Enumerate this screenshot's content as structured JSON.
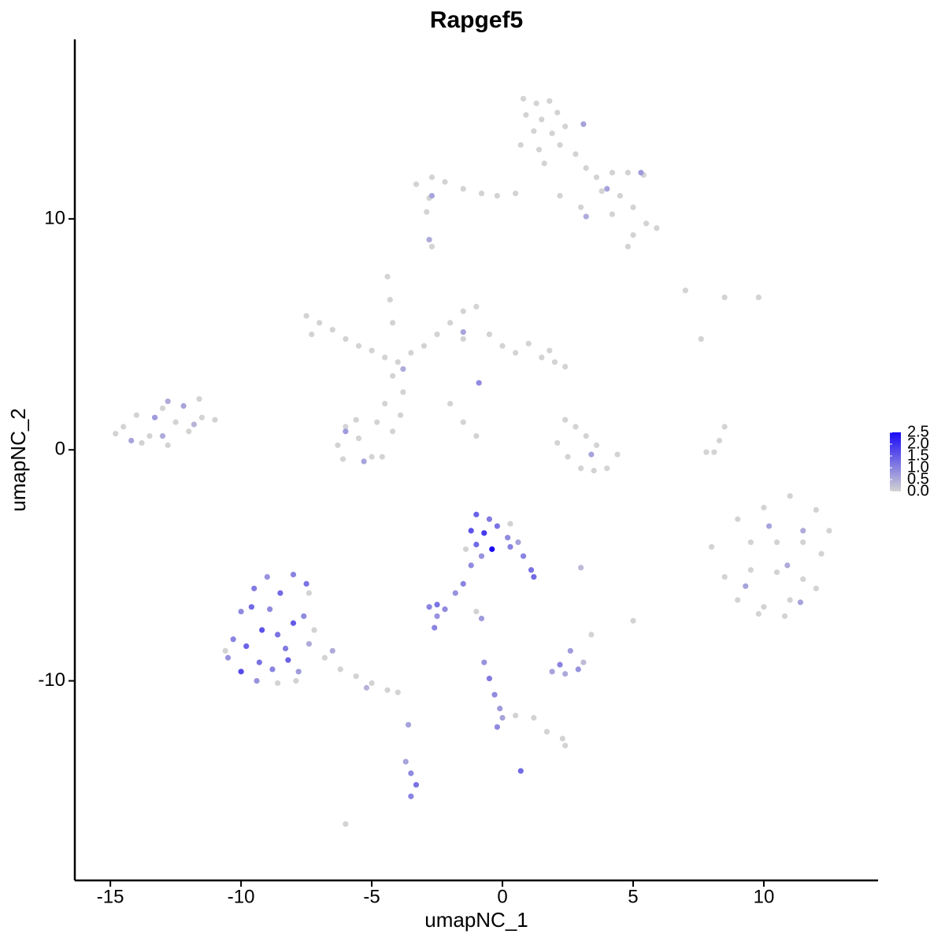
{
  "chart_data": {
    "type": "scatter",
    "title": "Rapgef5",
    "x_label": "umapNC_1",
    "y_label": "umapNC_2",
    "xlim": [
      -16.36,
      14.37
    ],
    "ylim": [
      -18.64,
      17.77
    ],
    "xticks": [
      -15,
      -10,
      -5,
      0,
      5,
      10
    ],
    "yticks": [
      -10,
      0,
      10
    ],
    "low_color": "#d3d3d3",
    "high_color": "#1a0af5",
    "clim": [
      0,
      2.5
    ],
    "cticks": [
      {
        "value": 0,
        "label": "0.0"
      },
      {
        "value": 0.5,
        "label": "0.5"
      },
      {
        "value": 1,
        "label": "1.0"
      },
      {
        "value": 1.5,
        "label": "1.5"
      },
      {
        "value": 2,
        "label": "2.0"
      },
      {
        "value": 2.5,
        "label": "2.5"
      }
    ],
    "x": [
      0.8,
      1.3,
      1.8,
      0.9,
      1.5,
      2.1,
      1.2,
      1.9,
      2.4,
      0.7,
      1.4,
      2.2,
      2.8,
      1.6,
      3.2,
      3.6,
      4.2,
      4.8,
      5.4,
      3.8,
      4.5,
      5.0,
      4.2,
      5.5,
      5.9,
      5.0,
      4.8,
      3.0,
      2.2,
      3.1,
      5.3,
      4.0,
      3.2,
      -3.3,
      -2.7,
      -2.2,
      -1.5,
      -0.8,
      -0.2,
      0.5,
      -2.8,
      -2.9,
      -2.7,
      -2.7,
      -2.8,
      -4.5,
      -4.0,
      -3.5,
      -5.0,
      -4.2,
      -3.8,
      -4.5,
      -4.8,
      -4.2,
      -3.9,
      -7.5,
      -7.0,
      -6.5,
      -6.0,
      -5.5,
      -7.3,
      -4.4,
      -4.3,
      -4.2,
      -3.0,
      -2.5,
      -2.0,
      -1.5,
      -1.0,
      -1.5,
      -0.5,
      0.0,
      0.5,
      1.0,
      1.5,
      2.0,
      2.4,
      1.8,
      -2.0,
      -1.5,
      -1.0,
      -6.0,
      -6.3,
      -5.5,
      -5.0,
      -6.1,
      -5.6,
      -4.6,
      -6.0,
      -5.3,
      -3.8,
      -1.5,
      -0.9,
      -14.5,
      -14.0,
      -13.5,
      -13.0,
      -12.5,
      -12.0,
      -11.5,
      -11.0,
      -11.6,
      -12.8,
      -13.8,
      -14.8,
      -12.2,
      -13.3,
      -12.8,
      -14.2,
      -11.8,
      -13.0,
      2.1,
      2.5,
      3.0,
      3.5,
      4.0,
      4.4,
      3.2,
      2.8,
      3.6,
      3.4,
      2.4,
      8.1,
      8.3,
      8.5,
      7.8,
      7.0,
      8.5,
      9.8,
      7.6,
      9.0,
      10.0,
      11.0,
      12.0,
      12.5,
      9.5,
      10.5,
      11.5,
      12.2,
      8.5,
      9.5,
      10.5,
      11.5,
      9.0,
      10.0,
      11.0,
      12.0,
      9.8,
      10.8,
      8.0,
      10.2,
      11.5,
      9.3,
      10.9,
      11.4,
      -10.0,
      -9.5,
      -9.0,
      -8.5,
      -8.0,
      -7.5,
      -10.3,
      -9.8,
      -9.2,
      -8.6,
      -8.0,
      -7.6,
      -10.5,
      -10.0,
      -9.3,
      -8.8,
      -8.2,
      -7.8,
      -9.6,
      -8.9,
      -8.3,
      -7.4,
      -9.4,
      -8.6,
      -7.9,
      -7.2,
      -10.6,
      -7.4,
      -6.8,
      -6.2,
      -5.6,
      -5.0,
      -4.4,
      -4.0,
      -6.5,
      -5.2,
      -1.0,
      -0.5,
      -1.2,
      -0.7,
      -0.2,
      0.2,
      -1.0,
      -0.4,
      0.3,
      -0.8,
      0.6,
      0.8,
      1.1,
      1.2,
      -1.2,
      -1.5,
      -1.8,
      0.3,
      -1.4,
      -2.8,
      -2.5,
      -2.2,
      -2.5,
      -2.6,
      -1.0,
      -0.8,
      2.2,
      2.6,
      2.9,
      2.4,
      3.1,
      1.9,
      3.4,
      5.0,
      3.0,
      -0.7,
      -0.5,
      -0.3,
      -0.1,
      0.0,
      -0.2,
      0.5,
      1.2,
      1.7,
      2.3,
      2.4,
      -3.5,
      -3.3,
      -3.5,
      -3.7,
      -3.6,
      0.7,
      -6.0
    ],
    "y": [
      15.2,
      15.0,
      15.1,
      14.5,
      14.3,
      14.6,
      13.8,
      13.7,
      14.0,
      13.2,
      13.0,
      13.2,
      12.8,
      12.4,
      12.2,
      11.8,
      12.0,
      12.0,
      11.9,
      11.2,
      11.0,
      10.5,
      10.2,
      9.8,
      9.6,
      9.3,
      8.8,
      10.5,
      11.0,
      14.1,
      12.0,
      11.3,
      10.1,
      11.5,
      11.8,
      11.6,
      11.3,
      11.1,
      11.0,
      11.1,
      10.9,
      10.3,
      8.8,
      11.0,
      9.1,
      4.0,
      3.8,
      4.2,
      4.3,
      3.2,
      2.5,
      2.0,
      1.2,
      0.8,
      1.5,
      5.8,
      5.5,
      5.2,
      4.8,
      4.5,
      5.0,
      7.5,
      6.5,
      5.5,
      4.5,
      5.0,
      5.5,
      6.0,
      6.2,
      4.8,
      5.0,
      4.5,
      4.2,
      4.6,
      4.0,
      3.8,
      3.6,
      4.3,
      2.0,
      1.2,
      0.6,
      1.0,
      0.2,
      0.5,
      -0.3,
      -0.4,
      1.3,
      -0.3,
      0.8,
      -0.5,
      3.5,
      5.1,
      2.9,
      1.0,
      1.5,
      0.6,
      1.8,
      1.2,
      0.8,
      1.4,
      1.3,
      2.2,
      0.2,
      0.3,
      0.7,
      1.9,
      1.4,
      2.1,
      0.4,
      1.1,
      0.6,
      0.3,
      -0.3,
      -0.8,
      -0.9,
      -0.8,
      -0.2,
      0.6,
      1.0,
      0.2,
      -0.2,
      1.3,
      -0.1,
      0.4,
      1.0,
      -0.1,
      6.9,
      6.6,
      6.6,
      4.8,
      -3.0,
      -2.5,
      -2.0,
      -2.6,
      -3.5,
      -4.0,
      -4.0,
      -4.0,
      -4.5,
      -5.5,
      -5.2,
      -5.3,
      -5.6,
      -6.5,
      -6.8,
      -6.5,
      -6.0,
      -7.1,
      -7.2,
      -4.2,
      -3.3,
      -3.5,
      -5.9,
      -5.0,
      -6.6,
      -7.0,
      -6.0,
      -5.5,
      -6.2,
      -5.4,
      -5.8,
      -8.2,
      -8.5,
      -7.8,
      -8.0,
      -7.5,
      -7.2,
      -9.0,
      -9.6,
      -9.2,
      -9.5,
      -9.1,
      -9.6,
      -6.8,
      -6.9,
      -8.6,
      -8.4,
      -10.0,
      -10.1,
      -10.0,
      -7.8,
      -8.7,
      -6.2,
      -9.0,
      -9.5,
      -9.8,
      -10.1,
      -10.4,
      -10.5,
      -8.7,
      -10.3,
      -2.8,
      -3.0,
      -3.5,
      -3.6,
      -3.3,
      -3.8,
      -4.1,
      -4.3,
      -4.2,
      -4.6,
      -4.0,
      -4.6,
      -5.2,
      -5.5,
      -5.0,
      -5.8,
      -6.2,
      -3.2,
      -4.3,
      -6.8,
      -6.7,
      -6.9,
      -7.2,
      -7.7,
      -7.0,
      -7.3,
      -9.3,
      -8.7,
      -9.5,
      -9.7,
      -9.2,
      -9.6,
      -8.0,
      -7.4,
      -5.1,
      -9.2,
      -9.9,
      -10.6,
      -11.2,
      -11.6,
      -12.0,
      -11.5,
      -11.6,
      -12.2,
      -12.5,
      -12.8,
      -14.0,
      -14.5,
      -15.0,
      -13.5,
      -11.9,
      -13.9,
      -16.2
    ],
    "expression": [
      0,
      0,
      0,
      0,
      0,
      0,
      0,
      0,
      0,
      0,
      0,
      0,
      0,
      0,
      0,
      0,
      0,
      0,
      0,
      0,
      0,
      0,
      0,
      0,
      0,
      0,
      0,
      0,
      0,
      0.6,
      0.7,
      0.6,
      0.5,
      0,
      0,
      0,
      0,
      0,
      0,
      0,
      0,
      0,
      0,
      0.6,
      0.5,
      0,
      0,
      0,
      0,
      0,
      0,
      0,
      0,
      0,
      0,
      0,
      0,
      0,
      0,
      0,
      0,
      0,
      0,
      0,
      0,
      0,
      0,
      0,
      0,
      0,
      0,
      0,
      0,
      0,
      0,
      0,
      0,
      0,
      0,
      0,
      0,
      0,
      0,
      0,
      0,
      0,
      0,
      0,
      0.7,
      0.6,
      0.5,
      0.6,
      0.9,
      0,
      0,
      0,
      0,
      0,
      0,
      0,
      0,
      0,
      0,
      0,
      0,
      0.6,
      0.7,
      0.5,
      0.6,
      0.4,
      0.5,
      0,
      0,
      0,
      0,
      0,
      0,
      0,
      0,
      0,
      0.6,
      0,
      0,
      0,
      0,
      0,
      0,
      0,
      0,
      0,
      0,
      0,
      0,
      0,
      0,
      0,
      0,
      0,
      0,
      0,
      0,
      0,
      0,
      0,
      0,
      0,
      0,
      0,
      0,
      0,
      0.6,
      0.5,
      0.6,
      0.5,
      0.6,
      0.9,
      1.1,
      0.8,
      1.3,
      1.0,
      1.2,
      1.0,
      1.4,
      1.6,
      1.2,
      1.5,
      0.9,
      0.8,
      1.7,
      1.2,
      1.0,
      1.4,
      0.7,
      1.3,
      0.9,
      1.1,
      0.5,
      0.8,
      0,
      0,
      0,
      0,
      0,
      0,
      0,
      0,
      0,
      0,
      0,
      0.5,
      0.4,
      1.4,
      1.1,
      1.6,
      1.9,
      1.2,
      0.9,
      1.3,
      2.5,
      1.0,
      0.8,
      0.6,
      1.0,
      1.2,
      1.3,
      0.9,
      1.0,
      0.8,
      0,
      0,
      1.0,
      1.2,
      0.9,
      0.8,
      1.0,
      0,
      0.7,
      1.0,
      0.7,
      0.8,
      0.5,
      0.3,
      0.6,
      0,
      0,
      0.3,
      0.8,
      1.1,
      0.9,
      0.7,
      0.6,
      0.9,
      0,
      0,
      0,
      0,
      0,
      0.9,
      1.2,
      1.0,
      0.6,
      0.6,
      1.3,
      0
    ]
  }
}
